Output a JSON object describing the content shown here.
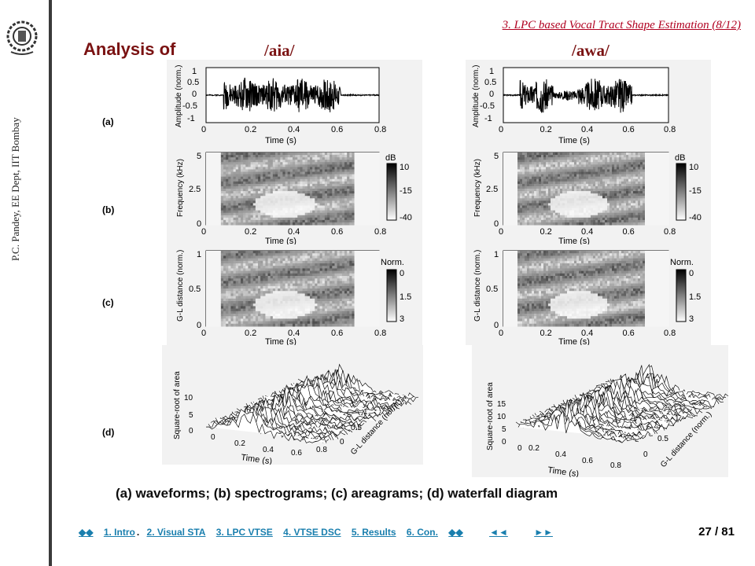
{
  "sidebar": {
    "author": "P.C. Pandey, EE Dept, IIT Bombay"
  },
  "header": {
    "section": "3. LPC based Vocal Tract Shape Estimation (8/12)"
  },
  "title": "Analysis of",
  "phonemes": [
    "/aia/",
    "/awa/"
  ],
  "row_labels": [
    "(a)",
    "(b)",
    "(c)",
    "(d)"
  ],
  "caption": "(a) waveforms; (b) spectrograms; (c) areagrams; (d) waterfall diagram",
  "nav": {
    "first": "◆◆",
    "items": [
      "1. Intro",
      "2. Visual STA",
      "3. LPC VTSE",
      "4. VTSE DSC",
      "5. Results",
      "6. Con."
    ],
    "last": "◆◆",
    "prev": "◄◄",
    "next": "►►"
  },
  "page": "27 / 81",
  "axes": {
    "waveform": {
      "ylabel": "Amplitude (norm.)",
      "xlabel": "Time (s)",
      "yticks": [
        "1",
        "0.5",
        "0",
        "-0.5",
        "-1"
      ],
      "xticks": [
        "0",
        "0.2",
        "0.4",
        "0.6",
        "0.8"
      ]
    },
    "spectrogram": {
      "ylabel": "Frequency (kHz)",
      "xlabel": "Time (s)",
      "yticks": [
        "5",
        "2.5",
        "0"
      ],
      "xticks": [
        "0",
        "0.2",
        "0.4",
        "0.6",
        "0.8"
      ],
      "cbar_title": "dB",
      "cbar_ticks": [
        "10",
        "-15",
        "-40"
      ]
    },
    "areagram": {
      "ylabel": "G-L distance (norm.)",
      "xlabel": "Time (s)",
      "yticks": [
        "1",
        "0.5",
        "0"
      ],
      "xticks": [
        "0",
        "0.2",
        "0.4",
        "0.6",
        "0.8"
      ],
      "cbar_title": "Norm.",
      "cbar_ticks": [
        "0",
        "1.5",
        "3"
      ]
    },
    "waterfall": {
      "zlabel": "Square-root of area",
      "xlabel": "Time (s)",
      "ylabel": "G-L distance (norm.)",
      "xticks": [
        "0",
        "0.2",
        "0.4",
        "0.6",
        "0.8"
      ],
      "yticks": [
        "0",
        "0.5",
        "1"
      ],
      "zticks_left": [
        "10",
        "5",
        "0"
      ],
      "zticks_right": [
        "15",
        "10",
        "5",
        "0"
      ]
    }
  }
}
